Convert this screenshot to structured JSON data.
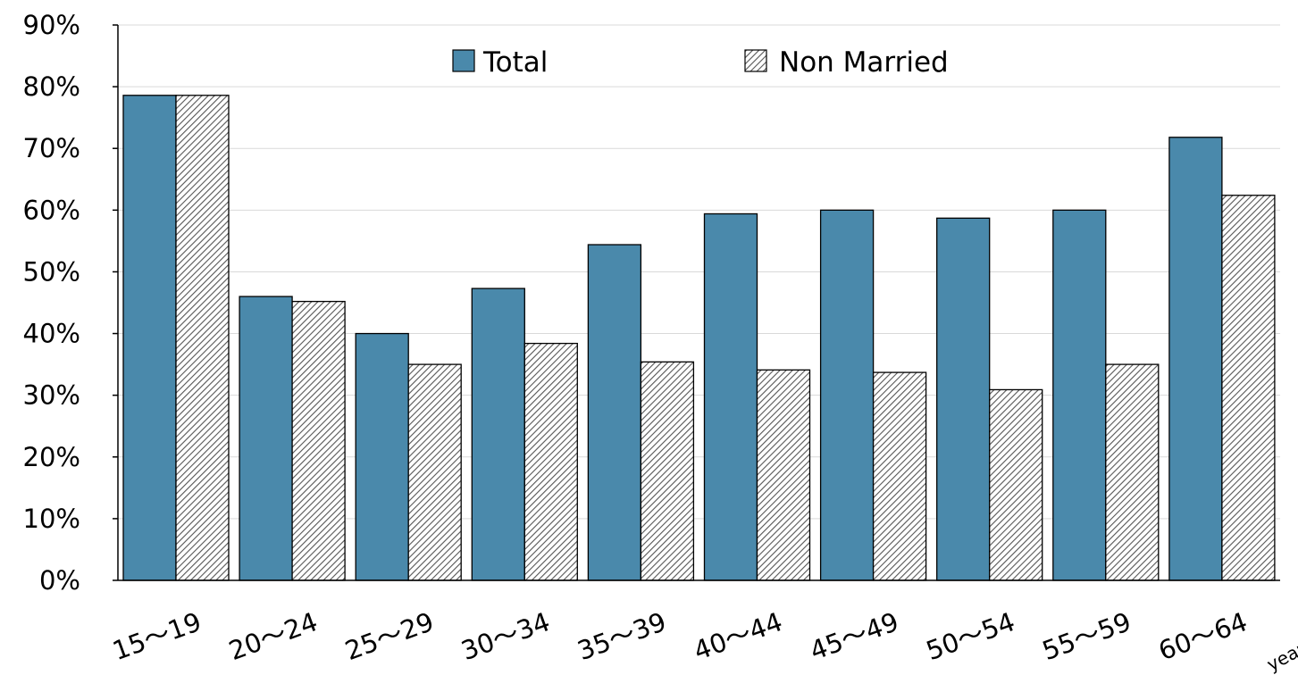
{
  "chart_data": {
    "type": "bar",
    "categories": [
      "15～19",
      "20～24",
      "25～29",
      "30～34",
      "35～39",
      "40～44",
      "45～49",
      "50～54",
      "55～59",
      "60～64"
    ],
    "series": [
      {
        "name": "Total",
        "values": [
          78.6,
          46.0,
          40.0,
          47.3,
          54.4,
          59.4,
          60.0,
          58.7,
          60.0,
          71.8
        ]
      },
      {
        "name": "Non Married",
        "values": [
          78.6,
          45.2,
          35.0,
          38.4,
          35.4,
          34.1,
          33.7,
          30.9,
          35.0,
          62.4
        ]
      }
    ],
    "ylim": [
      0,
      90
    ],
    "yticks": [
      "0%",
      "10%",
      "20%",
      "30%",
      "40%",
      "50%",
      "60%",
      "70%",
      "80%",
      "90%"
    ],
    "x_unit_label": "years old",
    "grid": "horizontal",
    "legend_position": "top-center",
    "colors": {
      "total": "#4a89ab",
      "non_married_hatch": "#555555",
      "non_married_bg": "#ffffff",
      "axis": "#000000",
      "grid": "#d9d9d9"
    }
  }
}
